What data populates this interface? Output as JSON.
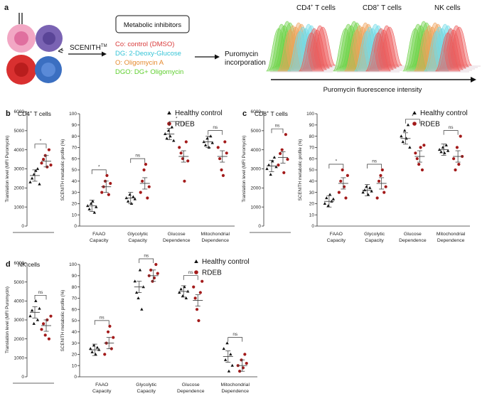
{
  "panel_a": {
    "label": "a",
    "method": "SCENITH",
    "method_sup": "TM",
    "inhibitors_title": "Metabolic inhibitors",
    "inhibitors": [
      {
        "text": "Co: control (DMSO)",
        "color": "#d93a3a"
      },
      {
        "text": "DG: 2-Deoxy-Glucose",
        "color": "#35c4d6"
      },
      {
        "text": "O: Oligomycin A",
        "color": "#e58a2e"
      },
      {
        "text": "DGO: DG+ Oligomycin",
        "color": "#5fcf2f"
      }
    ],
    "readout_line1": "Puromycin",
    "readout_line2": "incorporation",
    "hist_titles": [
      {
        "main": "CD4",
        "sup": "+",
        "rest": " T cells"
      },
      {
        "main": "CD8",
        "sup": "+",
        "rest": " T cells"
      },
      {
        "main": "NK cells",
        "sup": "",
        "rest": ""
      }
    ],
    "hist_colors": [
      "#6fd24a",
      "#f0a25a",
      "#70dbe8",
      "#ee5a5a"
    ],
    "x_axis": "Puromycin fluorescence intensity"
  },
  "legend": {
    "healthy": "Healthy control",
    "rdeb": "RDEB",
    "healthy_color": "#111111",
    "rdeb_color": "#a31a1a"
  },
  "y_translation": "Translation level (MFI Puromycin)",
  "y_profile": "SCENITH metabolic profile (%)",
  "categories": [
    [
      "FAAO",
      "Capacity"
    ],
    [
      "Glycolytic",
      "Capacity"
    ],
    [
      "Glucose",
      "Dependence"
    ],
    [
      "Mitochondrial",
      "Dependence"
    ]
  ],
  "chart_data": [
    {
      "type": "scatter",
      "panel": "b",
      "title": "CD4",
      "title_sup": "+",
      "title_rest": " T cells",
      "translation": {
        "ylim": [
          0,
          6000
        ],
        "ticks": [
          "0",
          "1000",
          "2000",
          "3000",
          "4000",
          "5000",
          "6000"
        ],
        "healthy": [
          2300,
          2500,
          2700,
          2900,
          3000,
          2200
        ],
        "healthy_mean": 2650,
        "rdeb": [
          3300,
          3500,
          3700,
          3100,
          4000,
          3200
        ],
        "rdeb_mean": 3400,
        "sig": "*"
      },
      "profile": {
        "ylim": [
          0,
          100
        ],
        "ticks": [
          "0",
          "10",
          "20",
          "30",
          "40",
          "50",
          "60",
          "70",
          "80",
          "90",
          "100"
        ],
        "groups": [
          {
            "healthy": [
              18,
              15,
              20,
              22,
              12,
              17
            ],
            "healthy_mean": 18,
            "rdeb": [
              30,
              35,
              40,
              45,
              28,
              38
            ],
            "rdeb_mean": 35,
            "sig": "*"
          },
          {
            "healthy": [
              25,
              22,
              28,
              20,
              26,
              24
            ],
            "healthy_mean": 25,
            "rdeb": [
              30,
              40,
              50,
              55,
              25,
              35
            ],
            "rdeb_mean": 38,
            "sig": "ns"
          },
          {
            "healthy": [
              82,
              78,
              85,
              80,
              88,
              76
            ],
            "healthy_mean": 82,
            "rdeb": [
              70,
              65,
              60,
              40,
              75,
              58
            ],
            "rdeb_mean": 62,
            "sig": "*"
          },
          {
            "healthy": [
              75,
              72,
              78,
              70,
              80,
              74
            ],
            "healthy_mean": 75,
            "rdeb": [
              70,
              60,
              50,
              45,
              75,
              65
            ],
            "rdeb_mean": 62,
            "sig": "ns"
          }
        ]
      }
    },
    {
      "type": "scatter",
      "panel": "c",
      "title": "CD8",
      "title_sup": "+",
      "title_rest": " T cells",
      "translation": {
        "ylim": [
          0,
          6000
        ],
        "ticks": [
          "0",
          "1000",
          "2000",
          "3000",
          "4000",
          "5000",
          "6000"
        ],
        "healthy": [
          3000,
          3200,
          2700,
          3400,
          3600,
          3100
        ],
        "healthy_mean": 3150,
        "rdeb": [
          3200,
          3800,
          4000,
          2800,
          4800,
          3500
        ],
        "rdeb_mean": 3600,
        "sig": "ns"
      },
      "profile": {
        "ylim": [
          0,
          100
        ],
        "ticks": [
          "0",
          "10",
          "20",
          "30",
          "40",
          "50",
          "60",
          "70",
          "80",
          "90",
          "100"
        ],
        "groups": [
          {
            "healthy": [
              20,
              25,
              18,
              28,
              22,
              24
            ],
            "healthy_mean": 22,
            "rdeb": [
              30,
              40,
              50,
              35,
              25,
              45
            ],
            "rdeb_mean": 38,
            "sig": "*"
          },
          {
            "healthy": [
              30,
              32,
              35,
              28,
              34,
              31
            ],
            "healthy_mean": 32,
            "rdeb": [
              25,
              40,
              45,
              50,
              30,
              35
            ],
            "rdeb_mean": 38,
            "sig": "ns"
          },
          {
            "healthy": [
              80,
              75,
              85,
              78,
              90,
              70
            ],
            "healthy_mean": 78,
            "rdeb": [
              65,
              60,
              55,
              70,
              50,
              72
            ],
            "rdeb_mean": 62,
            "sig": "*"
          },
          {
            "healthy": [
              68,
              66,
              70,
              65,
              72,
              67
            ],
            "healthy_mean": 68,
            "rdeb": [
              60,
              50,
              70,
              55,
              80,
              62
            ],
            "rdeb_mean": 62,
            "sig": "ns"
          }
        ]
      }
    },
    {
      "type": "scatter",
      "panel": "d",
      "title": "NK cells",
      "title_sup": "",
      "title_rest": "",
      "translation": {
        "ylim": [
          0,
          6000
        ],
        "ticks": [
          "0",
          "1000",
          "2000",
          "3000",
          "4000",
          "5000",
          "6000"
        ],
        "healthy": [
          3200,
          3500,
          2800,
          4000,
          3000,
          3600
        ],
        "healthy_mean": 3400,
        "rdeb": [
          2500,
          2800,
          2200,
          3000,
          2000,
          3200
        ],
        "rdeb_mean": 2700,
        "sig": "ns"
      },
      "profile": {
        "ylim": [
          0,
          100
        ],
        "ticks": [
          "0",
          "10",
          "20",
          "30",
          "40",
          "50",
          "60",
          "70",
          "80",
          "90",
          "100"
        ],
        "groups": [
          {
            "healthy": [
              25,
              22,
              28,
              20,
              26,
              24
            ],
            "healthy_mean": 24,
            "rdeb": [
              20,
              30,
              40,
              45,
              25,
              35
            ],
            "rdeb_mean": 30,
            "sig": "ns"
          },
          {
            "healthy": [
              85,
              75,
              70,
              95,
              60,
              80
            ],
            "healthy_mean": 80,
            "rdeb": [
              90,
              95,
              85,
              88,
              100,
              92
            ],
            "rdeb_mean": 90,
            "sig": "ns"
          },
          {
            "healthy": [
              75,
              78,
              72,
              80,
              70,
              76
            ],
            "healthy_mean": 76,
            "rdeb": [
              80,
              70,
              60,
              50,
              75,
              85
            ],
            "rdeb_mean": 68,
            "sig": "ns"
          },
          {
            "healthy": [
              25,
              15,
              30,
              5,
              20,
              10
            ],
            "healthy_mean": 18,
            "rdeb": [
              10,
              5,
              15,
              8,
              20,
              12
            ],
            "rdeb_mean": 10,
            "sig": "ns"
          }
        ]
      }
    }
  ]
}
